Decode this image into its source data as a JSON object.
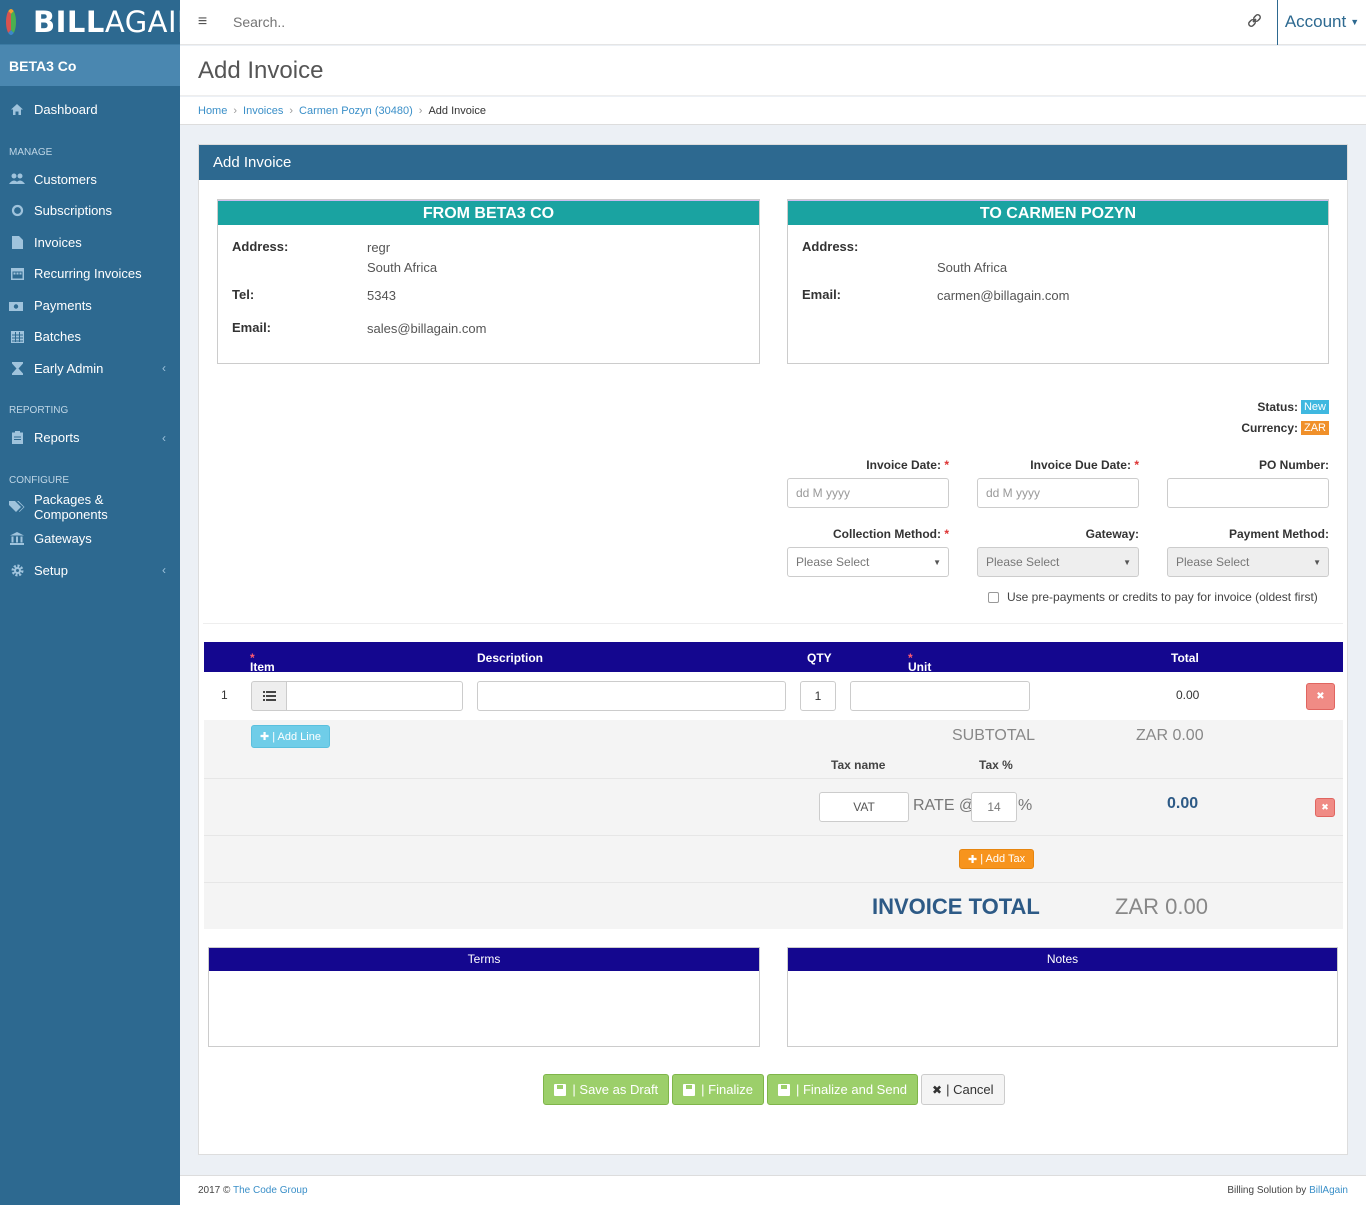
{
  "brand": {
    "bill": "BILL",
    "again": "AGAIN"
  },
  "sidebar": {
    "company": "BETA3 Co",
    "items": [
      {
        "label": "Dashboard",
        "icon": "home-icon"
      },
      {
        "header": "MANAGE"
      },
      {
        "label": "Customers",
        "icon": "users-icon"
      },
      {
        "label": "Subscriptions",
        "icon": "refresh-icon"
      },
      {
        "label": "Invoices",
        "icon": "file-icon"
      },
      {
        "label": "Recurring Invoices",
        "icon": "calendar-icon"
      },
      {
        "label": "Payments",
        "icon": "money-icon"
      },
      {
        "label": "Batches",
        "icon": "table-icon"
      },
      {
        "label": "Early Admin",
        "icon": "hourglass-icon"
      },
      {
        "header": "REPORTING"
      },
      {
        "label": "Reports",
        "icon": "clipboard-icon"
      },
      {
        "header": "CONFIGURE"
      },
      {
        "label": "Packages & Components",
        "icon": "tags-icon"
      },
      {
        "label": "Gateways",
        "icon": "bank-icon"
      },
      {
        "label": "Setup",
        "icon": "gear-icon"
      }
    ]
  },
  "topbar": {
    "search_placeholder": "Search..",
    "account": "Account"
  },
  "page": {
    "title": "Add Invoice"
  },
  "breadcrumb": {
    "home": "Home",
    "invoices": "Invoices",
    "customer": "Carmen Pozyn (30480)",
    "current": "Add Invoice"
  },
  "panel": {
    "title": "Add Invoice"
  },
  "from": {
    "title": "FROM BETA3 CO",
    "address_label": "Address:",
    "address_line1": "regr",
    "address_line2": "South Africa",
    "tel_label": "Tel:",
    "tel": "5343",
    "email_label": "Email:",
    "email": "sales@billagain.com"
  },
  "to": {
    "title": "TO CARMEN POZYN",
    "address_label": "Address:",
    "address_line2": "South Africa",
    "email_label": "Email:",
    "email": "carmen@billagain.com"
  },
  "status": {
    "status_label": "Status:",
    "status_value": "New",
    "currency_label": "Currency:",
    "currency_value": "ZAR"
  },
  "form": {
    "invoice_date_label": "Invoice Date:",
    "invoice_date_placeholder": "dd M yyyy",
    "due_date_label": "Invoice Due Date:",
    "due_date_placeholder": "dd M yyyy",
    "po_label": "PO Number:",
    "collection_label": "Collection Method:",
    "collection_value": "Please Select",
    "gateway_label": "Gateway:",
    "gateway_value": "Please Select",
    "payment_label": "Payment Method:",
    "payment_value": "Please Select",
    "prepay_label": "Use pre-payments or credits to pay for invoice (oldest first)",
    "required_mark": "*"
  },
  "items": {
    "headers": {
      "item": "Item",
      "description": "Description",
      "qty": "QTY",
      "unit_price": "Unit Price",
      "total": "Total"
    },
    "rows": [
      {
        "num": "1",
        "qty": "1",
        "total": "0.00"
      }
    ],
    "add_line": "| Add Line",
    "subtotal_label": "SUBTOTAL",
    "subtotal": "ZAR 0.00",
    "tax_name_header": "Tax name",
    "tax_pct_header": "Tax %",
    "tax_name": "VAT",
    "rate_label": "RATE @",
    "rate": "14",
    "pct": "%",
    "tax_total": "0.00",
    "add_tax": "| Add Tax",
    "invoice_total_label": "INVOICE TOTAL",
    "invoice_total": "ZAR 0.00"
  },
  "terms": {
    "title": "Terms"
  },
  "notes": {
    "title": "Notes"
  },
  "actions": {
    "save_draft": "| Save as Draft",
    "finalize": "| Finalize",
    "finalize_send": "| Finalize and Send",
    "cancel": "| Cancel"
  },
  "footer": {
    "year": "2017 ©",
    "company": "The Code Group",
    "right_text": "Billing Solution by",
    "right_link": "BillAgain"
  },
  "colors": {
    "sidebar": "#2d6990",
    "teal": "#1aa3a1",
    "navy": "#14078f",
    "green": "#9ccf6a",
    "orange": "#f0a030",
    "info": "#5bc0de"
  }
}
